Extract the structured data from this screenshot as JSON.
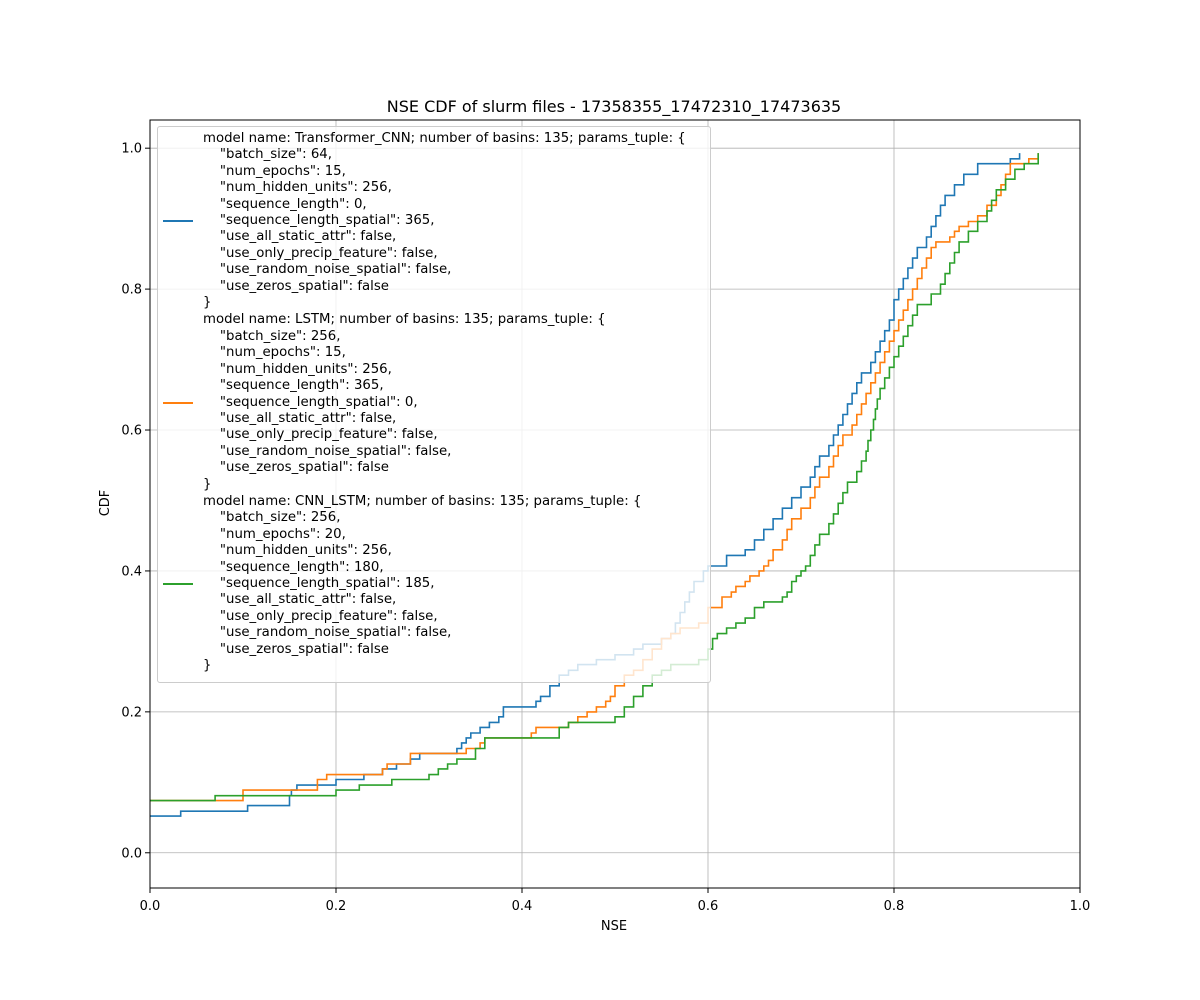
{
  "chart_data": {
    "type": "line",
    "title": "NSE CDF of slurm files - 17358355_17472310_17473635",
    "xlabel": "NSE",
    "ylabel": "CDF",
    "xlim": [
      0.0,
      1.0
    ],
    "ylim": [
      -0.05,
      1.04
    ],
    "x_ticks": [
      "0.0",
      "0.2",
      "0.4",
      "0.6",
      "0.8",
      "1.0"
    ],
    "y_ticks": [
      "0.0",
      "0.2",
      "0.4",
      "0.6",
      "0.8",
      "1.0"
    ],
    "grid": true,
    "legend_position": "upper-left",
    "series": [
      {
        "name": "model name: Transformer_CNN; number of basins: 135; params_tuple: {\n    \"batch_size\": 64,\n    \"num_epochs\": 15,\n    \"num_hidden_units\": 256,\n    \"sequence_length\": 0,\n    \"sequence_length_spatial\": 365,\n    \"use_all_static_attr\": false,\n    \"use_only_precip_feature\": false,\n    \"use_random_noise_spatial\": false,\n    \"use_zeros_spatial\": false\n}",
        "color": "#1f77b4",
        "points": [
          [
            0.0,
            0.052
          ],
          [
            0.033,
            0.059
          ],
          [
            0.105,
            0.067
          ],
          [
            0.15,
            0.081
          ],
          [
            0.152,
            0.089
          ],
          [
            0.158,
            0.096
          ],
          [
            0.2,
            0.104
          ],
          [
            0.23,
            0.111
          ],
          [
            0.25,
            0.119
          ],
          [
            0.265,
            0.126
          ],
          [
            0.28,
            0.133
          ],
          [
            0.29,
            0.141
          ],
          [
            0.33,
            0.148
          ],
          [
            0.335,
            0.156
          ],
          [
            0.34,
            0.163
          ],
          [
            0.345,
            0.17
          ],
          [
            0.355,
            0.178
          ],
          [
            0.365,
            0.185
          ],
          [
            0.375,
            0.193
          ],
          [
            0.38,
            0.207
          ],
          [
            0.415,
            0.215
          ],
          [
            0.42,
            0.222
          ],
          [
            0.43,
            0.237
          ],
          [
            0.44,
            0.252
          ],
          [
            0.45,
            0.259
          ],
          [
            0.46,
            0.267
          ],
          [
            0.48,
            0.274
          ],
          [
            0.5,
            0.281
          ],
          [
            0.52,
            0.289
          ],
          [
            0.53,
            0.296
          ],
          [
            0.55,
            0.304
          ],
          [
            0.56,
            0.311
          ],
          [
            0.565,
            0.326
          ],
          [
            0.57,
            0.341
          ],
          [
            0.575,
            0.356
          ],
          [
            0.58,
            0.37
          ],
          [
            0.585,
            0.385
          ],
          [
            0.595,
            0.4
          ],
          [
            0.6,
            0.407
          ],
          [
            0.62,
            0.422
          ],
          [
            0.64,
            0.43
          ],
          [
            0.65,
            0.444
          ],
          [
            0.66,
            0.459
          ],
          [
            0.67,
            0.474
          ],
          [
            0.68,
            0.489
          ],
          [
            0.69,
            0.504
          ],
          [
            0.7,
            0.519
          ],
          [
            0.71,
            0.533
          ],
          [
            0.715,
            0.548
          ],
          [
            0.72,
            0.563
          ],
          [
            0.73,
            0.578
          ],
          [
            0.735,
            0.593
          ],
          [
            0.74,
            0.607
          ],
          [
            0.745,
            0.622
          ],
          [
            0.75,
            0.637
          ],
          [
            0.755,
            0.652
          ],
          [
            0.76,
            0.667
          ],
          [
            0.765,
            0.681
          ],
          [
            0.775,
            0.696
          ],
          [
            0.78,
            0.711
          ],
          [
            0.785,
            0.726
          ],
          [
            0.79,
            0.741
          ],
          [
            0.795,
            0.756
          ],
          [
            0.8,
            0.785
          ],
          [
            0.805,
            0.8
          ],
          [
            0.81,
            0.815
          ],
          [
            0.815,
            0.83
          ],
          [
            0.82,
            0.844
          ],
          [
            0.825,
            0.859
          ],
          [
            0.835,
            0.874
          ],
          [
            0.84,
            0.889
          ],
          [
            0.845,
            0.904
          ],
          [
            0.85,
            0.919
          ],
          [
            0.855,
            0.933
          ],
          [
            0.865,
            0.948
          ],
          [
            0.875,
            0.963
          ],
          [
            0.89,
            0.978
          ],
          [
            0.925,
            0.985
          ],
          [
            0.935,
            0.993
          ]
        ]
      },
      {
        "name": "model name: LSTM; number of basins: 135; params_tuple: {\n    \"batch_size\": 256,\n    \"num_epochs\": 15,\n    \"num_hidden_units\": 256,\n    \"sequence_length\": 365,\n    \"sequence_length_spatial\": 0,\n    \"use_all_static_attr\": false,\n    \"use_only_precip_feature\": false,\n    \"use_random_noise_spatial\": false,\n    \"use_zeros_spatial\": false\n}",
        "color": "#ff7f0e",
        "points": [
          [
            0.0,
            0.074
          ],
          [
            0.1,
            0.089
          ],
          [
            0.18,
            0.104
          ],
          [
            0.19,
            0.111
          ],
          [
            0.25,
            0.119
          ],
          [
            0.255,
            0.126
          ],
          [
            0.28,
            0.141
          ],
          [
            0.34,
            0.148
          ],
          [
            0.355,
            0.156
          ],
          [
            0.36,
            0.163
          ],
          [
            0.41,
            0.17
          ],
          [
            0.415,
            0.178
          ],
          [
            0.45,
            0.185
          ],
          [
            0.46,
            0.193
          ],
          [
            0.47,
            0.2
          ],
          [
            0.48,
            0.207
          ],
          [
            0.49,
            0.215
          ],
          [
            0.495,
            0.222
          ],
          [
            0.5,
            0.237
          ],
          [
            0.51,
            0.252
          ],
          [
            0.52,
            0.259
          ],
          [
            0.53,
            0.274
          ],
          [
            0.54,
            0.289
          ],
          [
            0.55,
            0.304
          ],
          [
            0.56,
            0.311
          ],
          [
            0.57,
            0.319
          ],
          [
            0.59,
            0.326
          ],
          [
            0.6,
            0.348
          ],
          [
            0.615,
            0.363
          ],
          [
            0.625,
            0.37
          ],
          [
            0.63,
            0.378
          ],
          [
            0.64,
            0.385
          ],
          [
            0.645,
            0.393
          ],
          [
            0.655,
            0.4
          ],
          [
            0.66,
            0.407
          ],
          [
            0.665,
            0.415
          ],
          [
            0.67,
            0.43
          ],
          [
            0.68,
            0.444
          ],
          [
            0.685,
            0.459
          ],
          [
            0.69,
            0.474
          ],
          [
            0.7,
            0.489
          ],
          [
            0.71,
            0.504
          ],
          [
            0.715,
            0.519
          ],
          [
            0.72,
            0.533
          ],
          [
            0.73,
            0.548
          ],
          [
            0.735,
            0.563
          ],
          [
            0.74,
            0.578
          ],
          [
            0.745,
            0.593
          ],
          [
            0.755,
            0.607
          ],
          [
            0.76,
            0.622
          ],
          [
            0.765,
            0.637
          ],
          [
            0.77,
            0.652
          ],
          [
            0.775,
            0.667
          ],
          [
            0.78,
            0.681
          ],
          [
            0.785,
            0.696
          ],
          [
            0.79,
            0.711
          ],
          [
            0.795,
            0.726
          ],
          [
            0.8,
            0.741
          ],
          [
            0.805,
            0.756
          ],
          [
            0.81,
            0.77
          ],
          [
            0.815,
            0.785
          ],
          [
            0.82,
            0.8
          ],
          [
            0.825,
            0.815
          ],
          [
            0.83,
            0.83
          ],
          [
            0.835,
            0.844
          ],
          [
            0.84,
            0.859
          ],
          [
            0.845,
            0.867
          ],
          [
            0.86,
            0.874
          ],
          [
            0.865,
            0.882
          ],
          [
            0.87,
            0.889
          ],
          [
            0.88,
            0.896
          ],
          [
            0.89,
            0.904
          ],
          [
            0.9,
            0.919
          ],
          [
            0.91,
            0.933
          ],
          [
            0.915,
            0.948
          ],
          [
            0.92,
            0.963
          ],
          [
            0.925,
            0.978
          ],
          [
            0.945,
            0.985
          ],
          [
            0.955,
            0.993
          ]
        ]
      },
      {
        "name": "model name: CNN_LSTM; number of basins: 135; params_tuple: {\n    \"batch_size\": 256,\n    \"num_epochs\": 20,\n    \"num_hidden_units\": 256,\n    \"sequence_length\": 180,\n    \"sequence_length_spatial\": 185,\n    \"use_all_static_attr\": false,\n    \"use_only_precip_feature\": false,\n    \"use_random_noise_spatial\": false,\n    \"use_zeros_spatial\": false\n}",
        "color": "#2ca02c",
        "points": [
          [
            0.0,
            0.074
          ],
          [
            0.07,
            0.081
          ],
          [
            0.2,
            0.089
          ],
          [
            0.225,
            0.096
          ],
          [
            0.26,
            0.104
          ],
          [
            0.3,
            0.111
          ],
          [
            0.31,
            0.119
          ],
          [
            0.32,
            0.126
          ],
          [
            0.33,
            0.133
          ],
          [
            0.35,
            0.148
          ],
          [
            0.36,
            0.163
          ],
          [
            0.44,
            0.178
          ],
          [
            0.45,
            0.185
          ],
          [
            0.5,
            0.193
          ],
          [
            0.51,
            0.207
          ],
          [
            0.52,
            0.222
          ],
          [
            0.53,
            0.237
          ],
          [
            0.54,
            0.252
          ],
          [
            0.55,
            0.259
          ],
          [
            0.56,
            0.267
          ],
          [
            0.59,
            0.274
          ],
          [
            0.6,
            0.289
          ],
          [
            0.605,
            0.304
          ],
          [
            0.61,
            0.311
          ],
          [
            0.62,
            0.319
          ],
          [
            0.63,
            0.326
          ],
          [
            0.64,
            0.333
          ],
          [
            0.65,
            0.348
          ],
          [
            0.66,
            0.356
          ],
          [
            0.68,
            0.363
          ],
          [
            0.685,
            0.37
          ],
          [
            0.69,
            0.385
          ],
          [
            0.695,
            0.393
          ],
          [
            0.7,
            0.4
          ],
          [
            0.705,
            0.407
          ],
          [
            0.71,
            0.422
          ],
          [
            0.715,
            0.437
          ],
          [
            0.72,
            0.452
          ],
          [
            0.73,
            0.467
          ],
          [
            0.735,
            0.481
          ],
          [
            0.74,
            0.496
          ],
          [
            0.745,
            0.511
          ],
          [
            0.75,
            0.526
          ],
          [
            0.76,
            0.541
          ],
          [
            0.765,
            0.556
          ],
          [
            0.77,
            0.57
          ],
          [
            0.772,
            0.585
          ],
          [
            0.775,
            0.6
          ],
          [
            0.778,
            0.615
          ],
          [
            0.78,
            0.63
          ],
          [
            0.782,
            0.644
          ],
          [
            0.785,
            0.659
          ],
          [
            0.79,
            0.674
          ],
          [
            0.795,
            0.689
          ],
          [
            0.8,
            0.704
          ],
          [
            0.805,
            0.719
          ],
          [
            0.81,
            0.733
          ],
          [
            0.815,
            0.748
          ],
          [
            0.82,
            0.763
          ],
          [
            0.825,
            0.778
          ],
          [
            0.84,
            0.793
          ],
          [
            0.85,
            0.807
          ],
          [
            0.855,
            0.822
          ],
          [
            0.86,
            0.837
          ],
          [
            0.865,
            0.852
          ],
          [
            0.87,
            0.867
          ],
          [
            0.88,
            0.882
          ],
          [
            0.89,
            0.896
          ],
          [
            0.9,
            0.911
          ],
          [
            0.905,
            0.926
          ],
          [
            0.91,
            0.941
          ],
          [
            0.92,
            0.956
          ],
          [
            0.93,
            0.97
          ],
          [
            0.94,
            0.978
          ],
          [
            0.955,
            0.993
          ]
        ]
      }
    ]
  }
}
